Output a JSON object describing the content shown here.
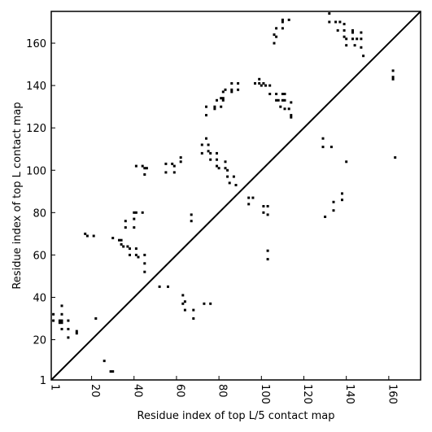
{
  "chart_data": {
    "type": "scatter",
    "xlabel": "Residue index of top L/5 contact map",
    "ylabel": "Residue index of top L contact map",
    "xlim": [
      1,
      175
    ],
    "ylim": [
      1,
      175
    ],
    "x_ticks": [
      1,
      20,
      40,
      60,
      80,
      100,
      120,
      140,
      160
    ],
    "y_ticks": [
      1,
      20,
      40,
      60,
      80,
      100,
      120,
      140,
      160
    ],
    "grid": false,
    "legend": "none",
    "diagonal_line": true,
    "point_color": "#000000",
    "series": [
      {
        "values": [
          [
            26,
            10
          ],
          [
            29,
            5
          ],
          [
            30,
            5
          ],
          [
            2,
            32
          ],
          [
            2,
            29
          ],
          [
            5,
            29
          ],
          [
            5,
            28
          ],
          [
            6,
            29
          ],
          [
            6,
            28
          ],
          [
            6,
            36
          ],
          [
            6,
            32
          ],
          [
            6,
            25
          ],
          [
            9,
            25
          ],
          [
            9,
            29
          ],
          [
            9,
            21
          ],
          [
            13,
            24
          ],
          [
            13,
            23
          ],
          [
            22,
            30
          ],
          [
            17,
            70
          ],
          [
            18,
            69
          ],
          [
            21,
            69
          ],
          [
            30,
            68
          ],
          [
            33,
            67
          ],
          [
            34,
            67
          ],
          [
            34,
            65
          ],
          [
            35,
            64
          ],
          [
            37,
            64
          ],
          [
            38,
            63
          ],
          [
            38,
            60
          ],
          [
            36,
            76
          ],
          [
            36,
            73
          ],
          [
            40,
            77
          ],
          [
            40,
            73
          ],
          [
            40,
            80
          ],
          [
            41,
            80
          ],
          [
            41,
            63
          ],
          [
            41,
            60
          ],
          [
            42,
            59
          ],
          [
            44,
            80
          ],
          [
            45,
            56
          ],
          [
            45,
            52
          ],
          [
            45,
            60
          ],
          [
            41,
            102
          ],
          [
            44,
            102
          ],
          [
            45,
            101
          ],
          [
            45,
            98
          ],
          [
            46,
            101
          ],
          [
            52,
            45
          ],
          [
            56,
            45
          ],
          [
            63,
            41
          ],
          [
            63,
            37
          ],
          [
            64,
            38
          ],
          [
            64,
            34
          ],
          [
            68,
            34
          ],
          [
            68,
            30
          ],
          [
            73,
            37
          ],
          [
            76,
            37
          ],
          [
            67,
            79
          ],
          [
            67,
            76
          ],
          [
            55,
            103
          ],
          [
            55,
            99
          ],
          [
            58,
            103
          ],
          [
            59,
            102
          ],
          [
            59,
            99
          ],
          [
            62,
            104
          ],
          [
            62,
            106
          ],
          [
            72,
            112
          ],
          [
            72,
            108
          ],
          [
            74,
            115
          ],
          [
            74,
            126
          ],
          [
            74,
            130
          ],
          [
            75,
            112
          ],
          [
            75,
            109
          ],
          [
            76,
            108
          ],
          [
            76,
            105
          ],
          [
            78,
            130
          ],
          [
            78,
            129
          ],
          [
            79,
            133
          ],
          [
            79,
            108
          ],
          [
            79,
            105
          ],
          [
            79,
            102
          ],
          [
            80,
            101
          ],
          [
            81,
            130
          ],
          [
            81,
            134
          ],
          [
            82,
            134
          ],
          [
            82,
            137
          ],
          [
            82,
            133
          ],
          [
            83,
            138
          ],
          [
            83,
            104
          ],
          [
            83,
            101
          ],
          [
            84,
            100
          ],
          [
            84,
            97
          ],
          [
            85,
            94
          ],
          [
            86,
            138
          ],
          [
            86,
            137
          ],
          [
            86,
            141
          ],
          [
            87,
            97
          ],
          [
            88,
            93
          ],
          [
            89,
            141
          ],
          [
            89,
            138
          ],
          [
            94,
            87
          ],
          [
            94,
            84
          ],
          [
            96,
            87
          ],
          [
            97,
            141
          ],
          [
            99,
            143
          ],
          [
            99,
            141
          ],
          [
            100,
            140
          ],
          [
            101,
            141
          ],
          [
            102,
            140
          ],
          [
            101,
            83
          ],
          [
            101,
            80
          ],
          [
            103,
            83
          ],
          [
            103,
            79
          ],
          [
            103,
            62
          ],
          [
            103,
            58
          ],
          [
            104,
            140
          ],
          [
            104,
            136
          ],
          [
            106,
            160
          ],
          [
            106,
            164
          ],
          [
            107,
            167
          ],
          [
            107,
            163
          ],
          [
            107,
            136
          ],
          [
            107,
            133
          ],
          [
            108,
            133
          ],
          [
            109,
            130
          ],
          [
            110,
            171
          ],
          [
            110,
            170
          ],
          [
            110,
            167
          ],
          [
            110,
            136
          ],
          [
            110,
            133
          ],
          [
            111,
            136
          ],
          [
            111,
            133
          ],
          [
            111,
            129
          ],
          [
            113,
            171
          ],
          [
            113,
            129
          ],
          [
            114,
            126
          ],
          [
            114,
            125
          ],
          [
            114,
            132
          ],
          [
            129,
            115
          ],
          [
            129,
            111
          ],
          [
            130,
            78
          ],
          [
            132,
            174
          ],
          [
            132,
            170
          ],
          [
            133,
            111
          ],
          [
            134,
            81
          ],
          [
            134,
            85
          ],
          [
            135,
            170
          ],
          [
            136,
            166
          ],
          [
            137,
            170
          ],
          [
            138,
            86
          ],
          [
            138,
            89
          ],
          [
            139,
            166
          ],
          [
            139,
            163
          ],
          [
            139,
            169
          ],
          [
            140,
            104
          ],
          [
            140,
            159
          ],
          [
            140,
            162
          ],
          [
            143,
            166
          ],
          [
            143,
            165
          ],
          [
            143,
            162
          ],
          [
            144,
            159
          ],
          [
            145,
            162
          ],
          [
            147,
            165
          ],
          [
            147,
            162
          ],
          [
            147,
            158
          ],
          [
            148,
            154
          ],
          [
            162,
            147
          ],
          [
            162,
            144
          ],
          [
            162,
            143
          ],
          [
            163,
            106
          ]
        ]
      }
    ]
  }
}
